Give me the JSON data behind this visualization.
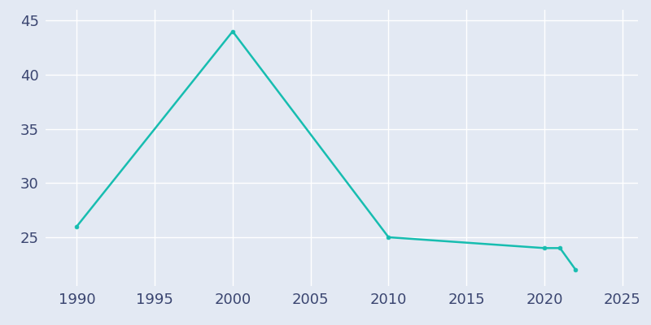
{
  "years": [
    1990,
    2000,
    2010,
    2020,
    2021,
    2022
  ],
  "population": [
    26,
    44,
    25,
    24,
    24,
    22
  ],
  "line_color": "#17BDB0",
  "line_width": 1.8,
  "marker": "o",
  "marker_size": 3.5,
  "background_color": "#E3E9F3",
  "plot_bg_color": "#E3E9F3",
  "grid_color": "#FFFFFF",
  "xlim": [
    1988,
    2026
  ],
  "ylim": [
    20.5,
    46
  ],
  "xticks": [
    1990,
    1995,
    2000,
    2005,
    2010,
    2015,
    2020,
    2025
  ],
  "yticks": [
    25,
    30,
    35,
    40,
    45
  ],
  "tick_fontsize": 13,
  "tick_color": "#3A4570",
  "figsize": [
    8.0,
    4.0
  ],
  "dpi": 100
}
